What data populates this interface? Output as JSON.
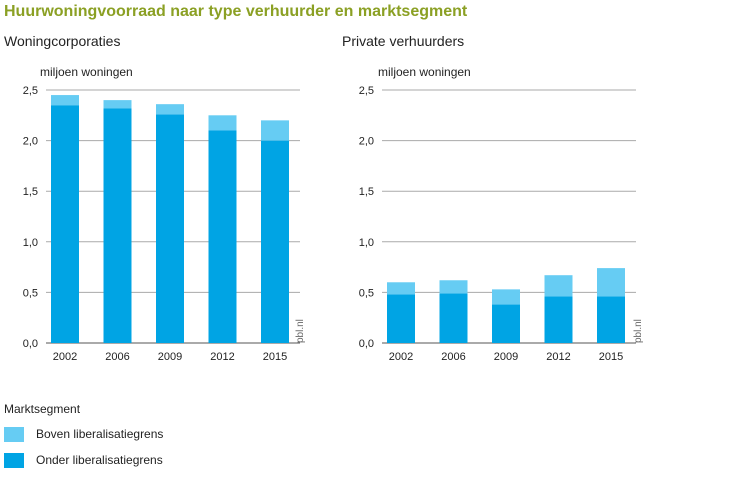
{
  "title": "Huurwoningvoorraad naar type verhuurder en marktsegment",
  "source_label": "pbl.nl",
  "colors": {
    "boven": "#66ccf3",
    "onder": "#00a4e4",
    "title": "#8ba024",
    "grid": "#aaaaaa"
  },
  "chart_data": [
    {
      "type": "bar",
      "stacked": true,
      "title": "Woningcorporaties",
      "ylabel": "miljoen woningen",
      "ylim": [
        0,
        2.5
      ],
      "yticks": [
        "0,0",
        "0,5",
        "1,0",
        "1,5",
        "2,0",
        "2,5"
      ],
      "categories": [
        "2002",
        "2006",
        "2009",
        "2012",
        "2015"
      ],
      "series": [
        {
          "name": "Onder liberalisatiegrens",
          "values": [
            2.35,
            2.32,
            2.26,
            2.1,
            2.0
          ]
        },
        {
          "name": "Boven liberalisatiegrens",
          "values": [
            0.1,
            0.08,
            0.1,
            0.15,
            0.2
          ]
        }
      ]
    },
    {
      "type": "bar",
      "stacked": true,
      "title": "Private verhuurders",
      "ylabel": "miljoen woningen",
      "ylim": [
        0,
        2.5
      ],
      "yticks": [
        "0,0",
        "0,5",
        "1,0",
        "1,5",
        "2,0",
        "2,5"
      ],
      "categories": [
        "2002",
        "2006",
        "2009",
        "2012",
        "2015"
      ],
      "series": [
        {
          "name": "Onder liberalisatiegrens",
          "values": [
            0.48,
            0.49,
            0.38,
            0.46,
            0.46
          ]
        },
        {
          "name": "Boven liberalisatiegrens",
          "values": [
            0.12,
            0.13,
            0.15,
            0.21,
            0.28
          ]
        }
      ]
    }
  ],
  "legend": {
    "title": "Marktsegment",
    "items": [
      {
        "label": "Boven liberalisatiegrens",
        "color": "#66ccf3"
      },
      {
        "label": "Onder liberalisatiegrens",
        "color": "#00a4e4"
      }
    ]
  }
}
